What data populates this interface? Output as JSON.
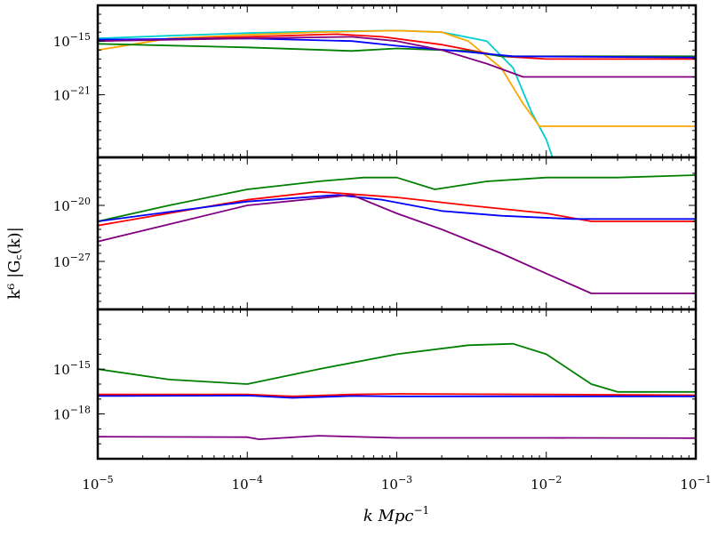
{
  "figure": {
    "xlabel": "k Mpc",
    "xlabel_exponent": "−1",
    "ylabel": "k⁶ |G꜀(k)|"
  },
  "chart_data": [
    {
      "type": "line",
      "panel": "top",
      "x_scale": "log",
      "y_scale": "log",
      "xlim": [
        1e-05,
        0.1
      ],
      "ylim": [
        1e-28,
        1e-11
      ],
      "x_ticks": [
        {
          "value": 1e-05,
          "label": "10",
          "exp": "−5"
        },
        {
          "value": 0.0001,
          "label": "10",
          "exp": "−4"
        },
        {
          "value": 0.001,
          "label": "10",
          "exp": "−3"
        },
        {
          "value": 0.01,
          "label": "10",
          "exp": "−2"
        },
        {
          "value": 0.1,
          "label": "10",
          "exp": "−1"
        }
      ],
      "y_ticks": [
        {
          "value": 1e-15,
          "label": "10",
          "exp": "−15"
        },
        {
          "value": 1e-21,
          "label": "10",
          "exp": "−21"
        }
      ],
      "series": [
        {
          "color": "#00ced1",
          "points": [
            [
              1e-05,
              2e-15
            ],
            [
              3e-05,
              4e-15
            ],
            [
              0.0001,
              8e-15
            ],
            [
              0.0003,
              1.2e-14
            ],
            [
              0.001,
              1.5e-14
            ],
            [
              0.002,
              1e-14
            ],
            [
              0.004,
              1e-15
            ],
            [
              0.006,
              1e-18
            ],
            [
              0.008,
              1e-23
            ],
            [
              0.01,
              1e-26
            ],
            [
              0.011,
              1e-28
            ]
          ]
        },
        {
          "color": "#ffa500",
          "points": [
            [
              1e-05,
              1e-16
            ],
            [
              3e-05,
              2e-15
            ],
            [
              0.0001,
              5e-15
            ],
            [
              0.0003,
              1e-14
            ],
            [
              0.001,
              1.5e-14
            ],
            [
              0.002,
              1e-14
            ],
            [
              0.003,
              1e-15
            ],
            [
              0.005,
              1e-18
            ],
            [
              0.007,
              1e-22
            ],
            [
              0.009,
              3e-25
            ],
            [
              0.1,
              3e-25
            ]
          ]
        },
        {
          "color": "#ff0000",
          "points": [
            [
              1e-05,
              1e-15
            ],
            [
              0.0001,
              3e-15
            ],
            [
              0.0004,
              6e-15
            ],
            [
              0.0008,
              3e-15
            ],
            [
              0.002,
              4e-16
            ],
            [
              0.005,
              2e-17
            ],
            [
              0.01,
              1e-17
            ],
            [
              0.1,
              1e-17
            ]
          ]
        },
        {
          "color": "#008000",
          "points": [
            [
              1e-05,
              5e-16
            ],
            [
              0.0001,
              2e-16
            ],
            [
              0.0005,
              8e-17
            ],
            [
              0.001,
              1.5e-16
            ],
            [
              0.003,
              8e-17
            ],
            [
              0.005,
              2e-17
            ],
            [
              0.1,
              2e-17
            ]
          ]
        },
        {
          "color": "#0000ff",
          "points": [
            [
              1e-05,
              1.5e-15
            ],
            [
              0.0001,
              2e-15
            ],
            [
              0.0005,
              1e-15
            ],
            [
              0.001,
              3e-16
            ],
            [
              0.003,
              6e-17
            ],
            [
              0.006,
              2e-17
            ],
            [
              0.1,
              1.5e-17
            ]
          ]
        },
        {
          "color": "#800080",
          "points": [
            [
              1e-05,
              1e-15
            ],
            [
              0.0001,
              2e-15
            ],
            [
              0.0005,
              3e-15
            ],
            [
              0.001,
              1e-15
            ],
            [
              0.002,
              1e-16
            ],
            [
              0.004,
              3e-18
            ],
            [
              0.007,
              1e-19
            ],
            [
              0.01,
              1e-19
            ],
            [
              0.1,
              1e-19
            ]
          ]
        }
      ]
    },
    {
      "type": "line",
      "panel": "middle",
      "x_scale": "log",
      "y_scale": "log",
      "xlim": [
        1e-05,
        0.1
      ],
      "ylim": [
        1e-33,
        1e-14
      ],
      "x_ticks": [
        {
          "value": 1e-05,
          "label": "10",
          "exp": "−5"
        },
        {
          "value": 0.0001,
          "label": "10",
          "exp": "−4"
        },
        {
          "value": 0.001,
          "label": "10",
          "exp": "−3"
        },
        {
          "value": 0.01,
          "label": "10",
          "exp": "−2"
        },
        {
          "value": 0.1,
          "label": "10",
          "exp": "−1"
        }
      ],
      "y_ticks": [
        {
          "value": 1e-20,
          "label": "10",
          "exp": "−20"
        },
        {
          "value": 1e-27,
          "label": "10",
          "exp": "−27"
        }
      ],
      "series": [
        {
          "color": "#008000",
          "points": [
            [
              1e-05,
              1e-22
            ],
            [
              3e-05,
              1e-20
            ],
            [
              0.0001,
              1e-18
            ],
            [
              0.0003,
              1e-17
            ],
            [
              0.0006,
              3e-17
            ],
            [
              0.001,
              3e-17
            ],
            [
              0.0018,
              1e-18
            ],
            [
              0.004,
              1e-17
            ],
            [
              0.01,
              3e-17
            ],
            [
              0.03,
              3e-17
            ],
            [
              0.1,
              6e-17
            ]
          ]
        },
        {
          "color": "#ff0000",
          "points": [
            [
              1e-05,
              3e-23
            ],
            [
              0.0001,
              5e-20
            ],
            [
              0.0003,
              5e-19
            ],
            [
              0.0006,
              2e-19
            ],
            [
              0.001,
              1e-19
            ],
            [
              0.003,
              1e-20
            ],
            [
              0.01,
              1e-21
            ],
            [
              0.02,
              1e-22
            ],
            [
              0.1,
              1e-22
            ]
          ]
        },
        {
          "color": "#0000ff",
          "points": [
            [
              1e-05,
              1e-22
            ],
            [
              0.0001,
              3e-20
            ],
            [
              0.0004,
              2e-19
            ],
            [
              0.0008,
              5e-20
            ],
            [
              0.002,
              2e-21
            ],
            [
              0.005,
              5e-22
            ],
            [
              0.015,
              2e-22
            ],
            [
              0.1,
              2e-22
            ]
          ]
        },
        {
          "color": "#800080",
          "points": [
            [
              1e-05,
              3e-25
            ],
            [
              0.0001,
              1e-20
            ],
            [
              0.0005,
              2e-19
            ],
            [
              0.001,
              1e-21
            ],
            [
              0.002,
              1e-23
            ],
            [
              0.005,
              1e-26
            ],
            [
              0.01,
              3e-29
            ],
            [
              0.02,
              1e-31
            ],
            [
              0.1,
              1e-31
            ]
          ]
        }
      ]
    },
    {
      "type": "line",
      "panel": "bottom",
      "x_scale": "log",
      "y_scale": "log",
      "xlim": [
        1e-05,
        0.1
      ],
      "ylim": [
        1e-21,
        1e-11
      ],
      "x_ticks": [
        {
          "value": 1e-05,
          "label": "10",
          "exp": "−5"
        },
        {
          "value": 0.0001,
          "label": "10",
          "exp": "−4"
        },
        {
          "value": 0.001,
          "label": "10",
          "exp": "−3"
        },
        {
          "value": 0.01,
          "label": "10",
          "exp": "−2"
        },
        {
          "value": 0.1,
          "label": "10",
          "exp": "−1"
        }
      ],
      "y_ticks": [
        {
          "value": 1e-15,
          "label": "10",
          "exp": "−15"
        },
        {
          "value": 1e-18,
          "label": "10",
          "exp": "−18"
        }
      ],
      "series": [
        {
          "color": "#008000",
          "points": [
            [
              1e-05,
              1e-15
            ],
            [
              3e-05,
              2e-16
            ],
            [
              0.0001,
              1e-16
            ],
            [
              0.0003,
              1e-15
            ],
            [
              0.001,
              1e-14
            ],
            [
              0.003,
              4e-14
            ],
            [
              0.006,
              5e-14
            ],
            [
              0.01,
              1e-14
            ],
            [
              0.02,
              1e-16
            ],
            [
              0.03,
              3e-17
            ],
            [
              0.1,
              3e-17
            ]
          ]
        },
        {
          "color": "#ff0000",
          "points": [
            [
              1e-05,
              2e-17
            ],
            [
              0.0001,
              2e-17
            ],
            [
              0.0002,
              1.5e-17
            ],
            [
              0.0005,
              2e-17
            ],
            [
              0.001,
              2.2e-17
            ],
            [
              0.01,
              2e-17
            ],
            [
              0.1,
              1.8e-17
            ]
          ]
        },
        {
          "color": "#0000ff",
          "points": [
            [
              1e-05,
              1.6e-17
            ],
            [
              0.0001,
              1.7e-17
            ],
            [
              0.0002,
              1.2e-17
            ],
            [
              0.0005,
              1.6e-17
            ],
            [
              0.001,
              1.5e-17
            ],
            [
              0.01,
              1.5e-17
            ],
            [
              0.1,
              1.5e-17
            ]
          ]
        },
        {
          "color": "#800080",
          "points": [
            [
              1e-05,
              3e-20
            ],
            [
              0.0001,
              2.8e-20
            ],
            [
              0.00012,
              2e-20
            ],
            [
              0.0003,
              3.5e-20
            ],
            [
              0.001,
              2.5e-20
            ],
            [
              0.01,
              2.5e-20
            ],
            [
              0.1,
              2.4e-20
            ]
          ]
        }
      ]
    }
  ]
}
